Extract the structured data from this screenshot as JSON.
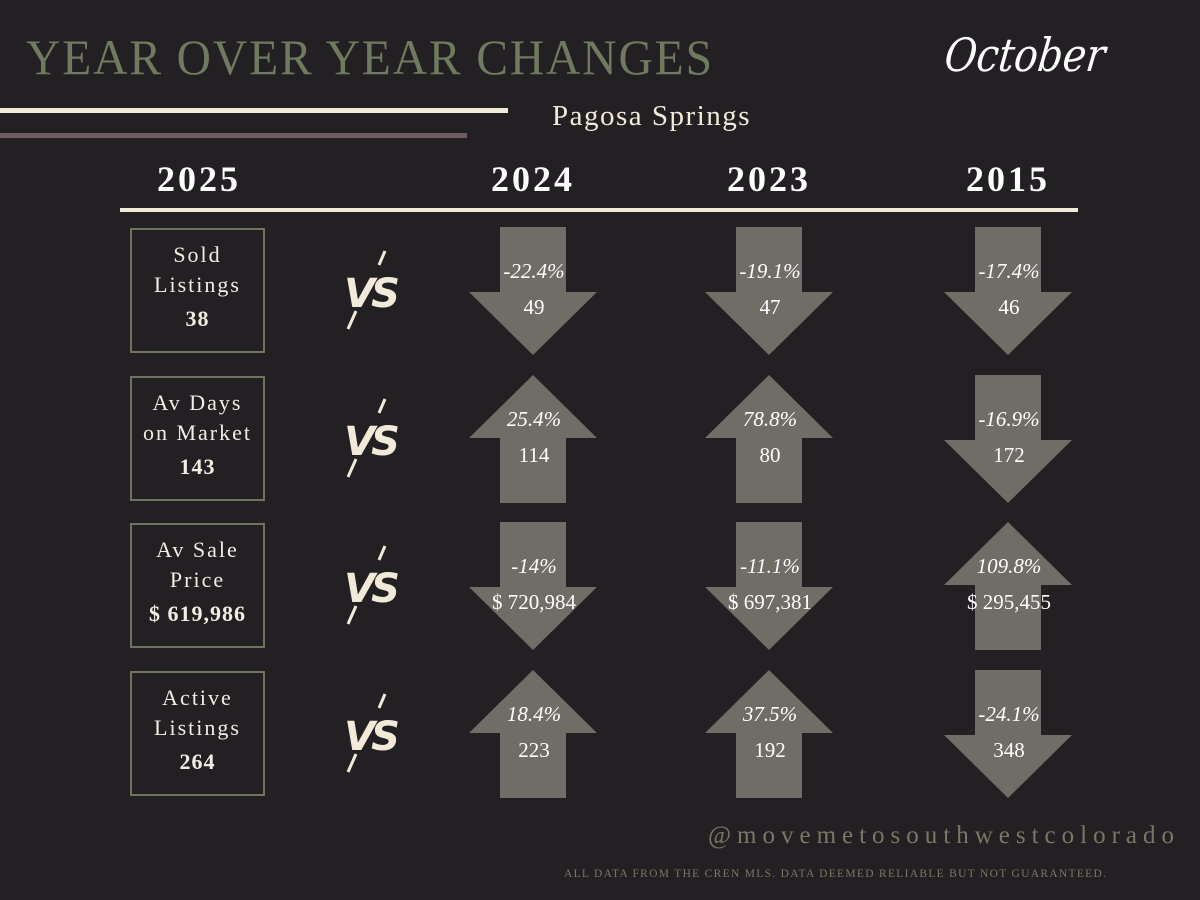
{
  "header": {
    "title": "YEAR OVER YEAR CHANGES",
    "month": "October",
    "location": "Pagosa Springs"
  },
  "years": {
    "current": "2025",
    "compare": [
      "2024",
      "2023",
      "2015"
    ]
  },
  "vs_label": "VS",
  "colors": {
    "background": "#222023",
    "title": "#6f7a5e",
    "arrow": "#706c66",
    "accent_line": "#f2ead9",
    "secondary_line": "#6e5a5f"
  },
  "rows": [
    {
      "label_1": "Sold",
      "label_2": "Listings",
      "value": "38",
      "cells": [
        {
          "direction": "down",
          "pct": "-22.4%",
          "value": "49"
        },
        {
          "direction": "down",
          "pct": "-19.1%",
          "value": "47"
        },
        {
          "direction": "down",
          "pct": "-17.4%",
          "value": "46"
        }
      ]
    },
    {
      "label_1": "Av Days",
      "label_2": "on Market",
      "value": "143",
      "cells": [
        {
          "direction": "up",
          "pct": "25.4%",
          "value": "114"
        },
        {
          "direction": "up",
          "pct": "78.8%",
          "value": "80"
        },
        {
          "direction": "down",
          "pct": "-16.9%",
          "value": "172"
        }
      ]
    },
    {
      "label_1": "Av Sale",
      "label_2": "Price",
      "value": "$ 619,986",
      "cells": [
        {
          "direction": "down",
          "pct": "-14%",
          "value": "$ 720,984"
        },
        {
          "direction": "down",
          "pct": "-11.1%",
          "value": "$ 697,381"
        },
        {
          "direction": "up",
          "pct": "109.8%",
          "value": "$ 295,455"
        }
      ]
    },
    {
      "label_1": "Active",
      "label_2": "Listings",
      "value": "264",
      "cells": [
        {
          "direction": "up",
          "pct": "18.4%",
          "value": "223"
        },
        {
          "direction": "up",
          "pct": "37.5%",
          "value": "192"
        },
        {
          "direction": "down",
          "pct": "-24.1%",
          "value": "348"
        }
      ]
    }
  ],
  "footer": {
    "handle": "@movemetosouthwestcolorado",
    "disclaimer": "ALL DATA FROM THE CREN MLS. DATA DEEMED RELIABLE BUT NOT GUARANTEED."
  }
}
